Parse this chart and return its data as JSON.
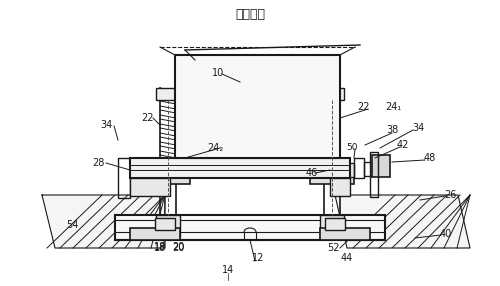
{
  "title": "『図２』",
  "bg_color": "#ffffff",
  "line_color": "#1a1a1a",
  "figsize": [
    5.0,
    2.86
  ],
  "dpi": 100,
  "fig_w": 500,
  "fig_h": 286
}
